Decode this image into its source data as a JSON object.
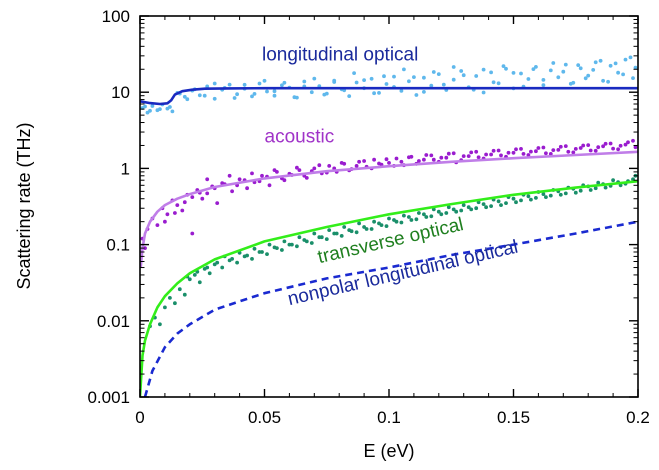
{
  "chart_data": {
    "type": "scatter",
    "xlabel": "E (eV)",
    "ylabel": "Scattering rate (THz)",
    "xlim": [
      0,
      0.2
    ],
    "ylim": [
      0.001,
      100
    ],
    "yscale": "log",
    "grid": false,
    "legend": "none",
    "x_ticks": [
      0,
      0.05,
      0.1,
      0.15,
      0.2
    ],
    "x_tick_labels": [
      "0",
      "0.05",
      "0.1",
      "0.15",
      "0.2"
    ],
    "y_ticks": [
      0.001,
      0.01,
      0.1,
      1,
      10,
      100
    ],
    "y_tick_labels": [
      "0.001",
      "0.01",
      "0.1",
      "1",
      "10",
      "100"
    ],
    "annotations": [
      {
        "text": "longitudinal optical",
        "x": 0.049,
        "y": 26,
        "color": "#1a2a9c",
        "rotation": 0
      },
      {
        "text": "acoustic",
        "x": 0.05,
        "y": 2.2,
        "color": "#a033c8",
        "rotation": 0
      },
      {
        "text": "transverse optical",
        "x": 0.072,
        "y": 0.057,
        "color": "#1f7f1f",
        "rotation": -13
      },
      {
        "text": "nonpolar longitudinal optical",
        "x": 0.06,
        "y": 0.016,
        "color": "#1a2a9c",
        "rotation": -13
      }
    ],
    "series": [
      {
        "kind": "line",
        "color": "#1a2ac0",
        "dash": false,
        "x": [
          0,
          0.004,
          0.008,
          0.011,
          0.0125,
          0.014,
          0.017,
          0.021,
          0.026,
          0.035,
          0.05,
          0.1,
          0.15,
          0.2
        ],
        "y": [
          7.6,
          7.2,
          7.0,
          7.15,
          7.8,
          9.3,
          10.3,
          10.8,
          11.1,
          11.2,
          11.3,
          11.3,
          11.3,
          11.3
        ]
      },
      {
        "kind": "line",
        "color": "#c07ee8",
        "dash": false,
        "x": [
          0.0003,
          0.001,
          0.002,
          0.004,
          0.007,
          0.01,
          0.015,
          0.02,
          0.03,
          0.05,
          0.075,
          0.1,
          0.125,
          0.15,
          0.175,
          0.2
        ],
        "y": [
          0.05,
          0.09,
          0.14,
          0.2,
          0.27,
          0.33,
          0.4,
          0.46,
          0.57,
          0.74,
          0.92,
          1.07,
          1.22,
          1.36,
          1.5,
          1.65
        ]
      },
      {
        "kind": "line",
        "color": "#33ee1a",
        "dash": false,
        "x": [
          0,
          0.001,
          0.002,
          0.004,
          0.007,
          0.01,
          0.015,
          0.02,
          0.03,
          0.05,
          0.075,
          0.1,
          0.125,
          0.15,
          0.175,
          0.2
        ],
        "y": [
          0.001,
          0.0035,
          0.0055,
          0.009,
          0.015,
          0.021,
          0.031,
          0.042,
          0.064,
          0.11,
          0.17,
          0.25,
          0.34,
          0.45,
          0.56,
          0.68
        ]
      },
      {
        "kind": "line",
        "color": "#1a2ad0",
        "dash": true,
        "x": [
          0.002,
          0.005,
          0.01,
          0.015,
          0.02,
          0.03,
          0.04,
          0.05,
          0.075,
          0.1,
          0.125,
          0.15,
          0.175,
          0.2
        ],
        "y": [
          0.001,
          0.0022,
          0.0045,
          0.0068,
          0.009,
          0.014,
          0.018,
          0.023,
          0.036,
          0.05,
          0.073,
          0.1,
          0.14,
          0.2
        ]
      },
      {
        "kind": "scatter",
        "color": "#5fb8ec",
        "x": [
          0.001,
          0.003,
          0.005,
          0.007,
          0.009,
          0.011,
          0.013,
          0.015,
          0.018,
          0.021,
          0.024,
          0.027,
          0.03,
          0.033,
          0.036,
          0.039,
          0.042,
          0.045,
          0.048,
          0.051,
          0.054,
          0.057,
          0.06,
          0.063,
          0.066,
          0.069,
          0.072,
          0.075,
          0.078,
          0.081,
          0.084,
          0.087,
          0.09,
          0.093,
          0.096,
          0.099,
          0.102,
          0.105,
          0.108,
          0.111,
          0.114,
          0.117,
          0.12,
          0.123,
          0.126,
          0.129,
          0.132,
          0.135,
          0.138,
          0.141,
          0.144,
          0.147,
          0.15,
          0.153,
          0.156,
          0.159,
          0.162,
          0.165,
          0.168,
          0.171,
          0.174,
          0.177,
          0.18,
          0.183,
          0.186,
          0.189,
          0.192,
          0.195,
          0.198,
          0.199,
          0.197,
          0.194,
          0.191,
          0.188,
          0.185,
          0.182,
          0.179,
          0.176,
          0.173,
          0.17,
          0.166,
          0.162,
          0.158,
          0.154,
          0.15,
          0.146,
          0.142,
          0.138,
          0.134,
          0.13,
          0.126,
          0.122,
          0.118,
          0.114,
          0.11,
          0.106,
          0.102,
          0.098,
          0.094,
          0.09,
          0.086,
          0.082,
          0.078,
          0.074,
          0.07,
          0.066,
          0.062,
          0.058,
          0.054,
          0.05,
          0.046,
          0.042,
          0.038,
          0.034,
          0.03,
          0.026,
          0.022,
          0.019,
          0.016,
          0.012,
          0.008,
          0.004,
          0.002
        ],
        "y": [
          6.2,
          5.4,
          6.6,
          5.8,
          6.9,
          6.1,
          5.6,
          9.8,
          8.7,
          10.5,
          9.1,
          11.9,
          8.2,
          10.8,
          12.6,
          9.4,
          11.1,
          8.8,
          13.0,
          10.2,
          9.0,
          12.3,
          11.5,
          8.5,
          13.8,
          10.0,
          12.0,
          9.6,
          14.2,
          10.9,
          8.9,
          13.4,
          11.3,
          15.0,
          9.8,
          12.8,
          16.0,
          10.4,
          13.9,
          9.2,
          15.5,
          12.2,
          17.3,
          10.7,
          14.6,
          19.0,
          11.6,
          16.3,
          9.9,
          18.2,
          13.1,
          20.3,
          11.2,
          17.6,
          14.9,
          21.5,
          12.4,
          19.3,
          15.7,
          23.0,
          13.3,
          20.6,
          16.5,
          24.7,
          14.1,
          22.2,
          18.0,
          26.8,
          15.3,
          21.0,
          28.6,
          17.1,
          23.9,
          13.7,
          25.8,
          19.6,
          15.2,
          22.7,
          12.9,
          18.6,
          24.2,
          14.5,
          20.1,
          11.8,
          17.9,
          22.0,
          13.5,
          19.8,
          10.8,
          16.7,
          21.4,
          12.6,
          18.4,
          10.1,
          15.8,
          19.9,
          11.7,
          16.2,
          9.7,
          14.4,
          17.8,
          10.6,
          13.6,
          9.3,
          15.1,
          11.9,
          8.6,
          13.3,
          10.3,
          14.1,
          9.5,
          12.5,
          8.4,
          11.4,
          13.0,
          9.0,
          10.9,
          8.1,
          9.6,
          6.4,
          6.0,
          5.7,
          6.5
        ]
      },
      {
        "kind": "scatter",
        "color": "#9a1ccf",
        "x": [
          0.001,
          0.002,
          0.003,
          0.005,
          0.007,
          0.009,
          0.011,
          0.013,
          0.015,
          0.017,
          0.019,
          0.021,
          0.023,
          0.025,
          0.027,
          0.029,
          0.031,
          0.034,
          0.037,
          0.04,
          0.043,
          0.046,
          0.049,
          0.052,
          0.055,
          0.058,
          0.061,
          0.064,
          0.067,
          0.07,
          0.073,
          0.076,
          0.079,
          0.082,
          0.085,
          0.088,
          0.091,
          0.094,
          0.097,
          0.1,
          0.103,
          0.106,
          0.109,
          0.112,
          0.115,
          0.118,
          0.121,
          0.124,
          0.127,
          0.13,
          0.133,
          0.136,
          0.139,
          0.142,
          0.145,
          0.148,
          0.151,
          0.154,
          0.157,
          0.16,
          0.163,
          0.166,
          0.169,
          0.172,
          0.175,
          0.178,
          0.181,
          0.184,
          0.187,
          0.19,
          0.193,
          0.196,
          0.199,
          0.198,
          0.195,
          0.192,
          0.189,
          0.186,
          0.183,
          0.18,
          0.177,
          0.174,
          0.171,
          0.168,
          0.165,
          0.162,
          0.159,
          0.156,
          0.153,
          0.15,
          0.147,
          0.144,
          0.141,
          0.138,
          0.135,
          0.132,
          0.129,
          0.126,
          0.123,
          0.12,
          0.117,
          0.114,
          0.111,
          0.108,
          0.105,
          0.102,
          0.099,
          0.096,
          0.093,
          0.09,
          0.087,
          0.084,
          0.081,
          0.078,
          0.075,
          0.072,
          0.069,
          0.066,
          0.063,
          0.06,
          0.057,
          0.054,
          0.051,
          0.048,
          0.045,
          0.042,
          0.039,
          0.036,
          0.033,
          0.03,
          0.027,
          0.024,
          0.021,
          0.018,
          0.014,
          0.01
        ],
        "y": [
          0.12,
          0.09,
          0.16,
          0.22,
          0.18,
          0.3,
          0.25,
          0.38,
          0.33,
          0.28,
          0.45,
          0.14,
          0.52,
          0.4,
          0.47,
          0.58,
          0.35,
          0.62,
          0.5,
          0.72,
          0.55,
          0.66,
          0.8,
          0.6,
          0.9,
          0.7,
          0.82,
          0.95,
          0.75,
          1.0,
          0.86,
          1.08,
          0.9,
          1.15,
          0.98,
          1.22,
          1.05,
          1.3,
          1.12,
          1.18,
          1.35,
          1.1,
          1.42,
          1.25,
          1.5,
          1.3,
          1.38,
          1.56,
          1.2,
          1.45,
          1.62,
          1.4,
          1.52,
          1.7,
          1.48,
          1.6,
          1.78,
          1.55,
          1.66,
          1.85,
          1.58,
          1.74,
          1.92,
          1.65,
          1.8,
          2.0,
          1.72,
          1.9,
          2.1,
          1.82,
          1.98,
          2.2,
          1.9,
          2.3,
          2.05,
          1.78,
          2.12,
          1.95,
          1.7,
          2.02,
          1.85,
          1.62,
          1.96,
          1.75,
          1.55,
          1.88,
          1.68,
          1.5,
          1.8,
          1.6,
          1.42,
          1.72,
          1.52,
          1.35,
          1.65,
          1.45,
          1.28,
          1.58,
          1.38,
          1.22,
          1.48,
          1.3,
          1.15,
          1.4,
          1.22,
          1.08,
          1.32,
          1.16,
          1.0,
          1.25,
          1.08,
          0.94,
          1.18,
          1.0,
          0.88,
          1.1,
          0.92,
          0.8,
          1.02,
          0.85,
          0.74,
          0.95,
          0.78,
          0.68,
          0.86,
          0.7,
          0.6,
          0.8,
          0.64,
          0.55,
          0.72,
          0.48,
          0.42,
          0.36,
          0.26,
          0.2
        ]
      },
      {
        "kind": "scatter",
        "color": "#1a8f6a",
        "x": [
          0.004,
          0.006,
          0.008,
          0.01,
          0.012,
          0.014,
          0.016,
          0.018,
          0.02,
          0.022,
          0.024,
          0.026,
          0.028,
          0.03,
          0.033,
          0.036,
          0.039,
          0.042,
          0.045,
          0.048,
          0.051,
          0.054,
          0.057,
          0.06,
          0.063,
          0.066,
          0.069,
          0.072,
          0.075,
          0.078,
          0.081,
          0.084,
          0.087,
          0.09,
          0.093,
          0.096,
          0.099,
          0.102,
          0.105,
          0.108,
          0.111,
          0.114,
          0.117,
          0.12,
          0.123,
          0.126,
          0.129,
          0.132,
          0.135,
          0.138,
          0.141,
          0.144,
          0.147,
          0.15,
          0.153,
          0.156,
          0.159,
          0.162,
          0.165,
          0.168,
          0.171,
          0.174,
          0.177,
          0.18,
          0.183,
          0.186,
          0.189,
          0.192,
          0.195,
          0.198,
          0.199,
          0.196,
          0.193,
          0.19,
          0.187,
          0.184,
          0.181,
          0.178,
          0.175,
          0.172,
          0.169,
          0.166,
          0.163,
          0.16,
          0.157,
          0.154,
          0.151,
          0.148,
          0.145,
          0.142,
          0.139,
          0.136,
          0.133,
          0.13,
          0.127,
          0.124,
          0.121,
          0.118,
          0.115,
          0.112,
          0.109,
          0.106,
          0.103,
          0.1,
          0.097,
          0.094,
          0.091,
          0.088,
          0.085,
          0.082,
          0.079,
          0.076,
          0.073,
          0.07,
          0.067,
          0.064,
          0.061,
          0.058,
          0.055,
          0.052,
          0.049,
          0.046,
          0.043,
          0.04,
          0.037,
          0.034,
          0.031,
          0.027,
          0.023,
          0.019
        ],
        "y": [
          0.0085,
          0.011,
          0.009,
          0.015,
          0.02,
          0.017,
          0.026,
          0.022,
          0.035,
          0.04,
          0.032,
          0.048,
          0.042,
          0.055,
          0.05,
          0.062,
          0.058,
          0.07,
          0.065,
          0.08,
          0.075,
          0.092,
          0.085,
          0.1,
          0.095,
          0.115,
          0.105,
          0.125,
          0.118,
          0.14,
          0.13,
          0.155,
          0.145,
          0.17,
          0.16,
          0.19,
          0.175,
          0.21,
          0.195,
          0.23,
          0.215,
          0.25,
          0.235,
          0.27,
          0.26,
          0.29,
          0.28,
          0.31,
          0.3,
          0.34,
          0.32,
          0.37,
          0.35,
          0.4,
          0.38,
          0.43,
          0.41,
          0.46,
          0.44,
          0.5,
          0.47,
          0.54,
          0.51,
          0.58,
          0.55,
          0.62,
          0.59,
          0.66,
          0.63,
          0.72,
          0.8,
          0.68,
          0.6,
          0.7,
          0.56,
          0.65,
          0.52,
          0.6,
          0.48,
          0.56,
          0.45,
          0.52,
          0.42,
          0.49,
          0.39,
          0.45,
          0.36,
          0.42,
          0.33,
          0.39,
          0.31,
          0.36,
          0.29,
          0.33,
          0.27,
          0.31,
          0.25,
          0.29,
          0.23,
          0.26,
          0.21,
          0.24,
          0.2,
          0.22,
          0.18,
          0.2,
          0.16,
          0.19,
          0.15,
          0.17,
          0.14,
          0.155,
          0.125,
          0.14,
          0.11,
          0.125,
          0.1,
          0.11,
          0.09,
          0.1,
          0.08,
          0.088,
          0.072,
          0.078,
          0.065,
          0.07,
          0.058,
          0.05,
          0.044,
          0.038
        ]
      }
    ]
  }
}
